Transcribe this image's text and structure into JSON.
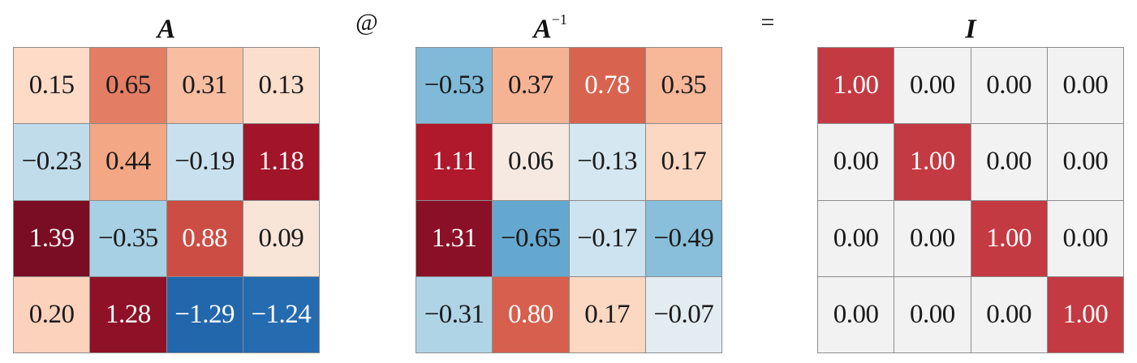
{
  "chart_data": {
    "type": "heatmap",
    "colormap": "RdBu_r",
    "operator": "@",
    "equals": "=",
    "matrices": [
      {
        "name": "A",
        "title": "A",
        "superscript": "",
        "values": [
          [
            "0.15",
            "0.65",
            "0.31",
            "0.13"
          ],
          [
            "−0.23",
            "0.44",
            "−0.19",
            "1.18"
          ],
          [
            "1.39",
            "−0.35",
            "0.88",
            "0.09"
          ],
          [
            "0.20",
            "1.28",
            "−1.29",
            "−1.24"
          ]
        ]
      },
      {
        "name": "A_inv",
        "title": "A",
        "superscript": "−1",
        "values": [
          [
            "−0.53",
            "0.37",
            "0.78",
            "0.35"
          ],
          [
            "1.11",
            "0.06",
            "−0.13",
            "0.17"
          ],
          [
            "1.31",
            "−0.65",
            "−0.17",
            "−0.49"
          ],
          [
            "−0.31",
            "0.80",
            "0.17",
            "−0.07"
          ]
        ]
      },
      {
        "name": "I",
        "title": "I",
        "superscript": "",
        "values": [
          [
            "1.00",
            "0.00",
            "0.00",
            "0.00"
          ],
          [
            "0.00",
            "1.00",
            "0.00",
            "0.00"
          ],
          [
            "0.00",
            "0.00",
            "1.00",
            "0.00"
          ],
          [
            "0.00",
            "0.00",
            "0.00",
            "1.00"
          ]
        ]
      }
    ],
    "colors": {
      "dark_red": "#67001f",
      "red": "#b2182b",
      "mid_red": "#d6604d",
      "light_red": "#f4a582",
      "pale_red": "#fddbc7",
      "neutral": "#f2f2f2",
      "pale_blue": "#d1e5f0",
      "light_blue": "#92c5de",
      "mid_blue": "#4393c3",
      "blue": "#2166ac",
      "dark_blue": "#053061"
    }
  }
}
